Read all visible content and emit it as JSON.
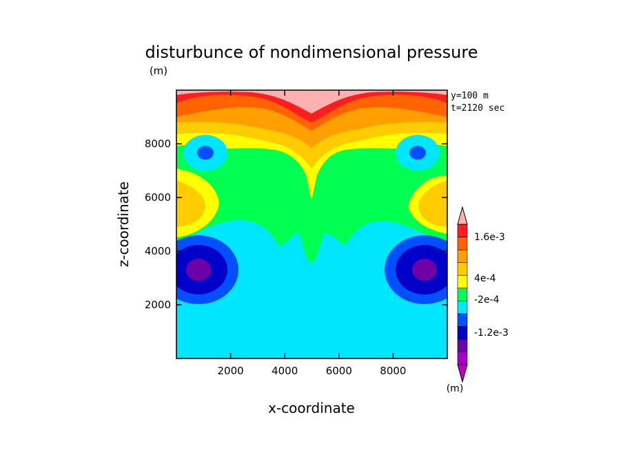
{
  "chart_data": {
    "type": "heatmap",
    "title": "disturbunce of nondimensional pressure",
    "xlabel": "x-coordinate",
    "ylabel": "z-coordinate",
    "y_unit": "(m)",
    "x_unit": "(m)",
    "annotation_lines": [
      "y=100 m",
      "t=2120 sec"
    ],
    "xlim": [
      0,
      10000
    ],
    "ylim": [
      0,
      10000
    ],
    "x_ticks": [
      2000,
      4000,
      6000,
      8000
    ],
    "y_ticks": [
      2000,
      4000,
      6000,
      8000
    ],
    "colorbar": {
      "tick_labels": [
        "1.6e-3",
        "4e-4",
        "-2e-4",
        "-1.2e-3"
      ],
      "bands": [
        {
          "color": "#c000c0"
        },
        {
          "color": "#a000c8"
        },
        {
          "color": "#6e00a8"
        },
        {
          "color": "#0000c8"
        },
        {
          "color": "#0050ff"
        },
        {
          "color": "#00e6ff"
        },
        {
          "color": "#00ff50"
        },
        {
          "color": "#ffff00"
        },
        {
          "color": "#ffcc00"
        },
        {
          "color": "#ffa000"
        },
        {
          "color": "#ff6400"
        },
        {
          "color": "#ff1e1e"
        },
        {
          "color": "#ffb0b0"
        }
      ]
    }
  }
}
